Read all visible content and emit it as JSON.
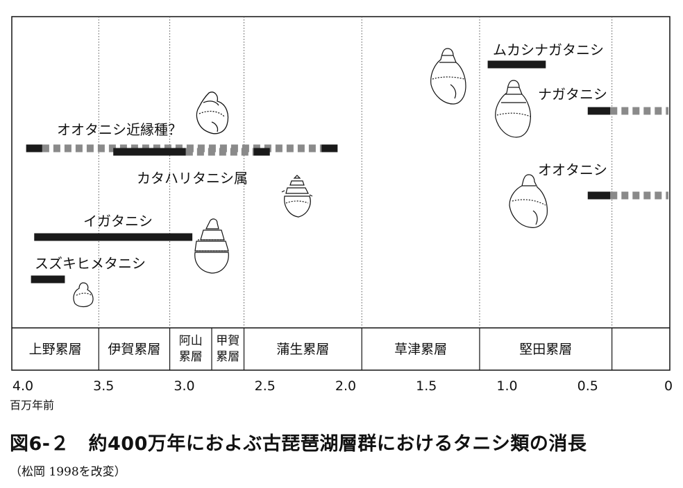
{
  "chart_data": {
    "type": "range-bar",
    "x_axis": {
      "reversed": true,
      "domain": [
        4.0,
        0
      ],
      "ticks": [
        {
          "value": 4.0,
          "label": "4.0"
        },
        {
          "value": 3.5,
          "label": "3.5"
        },
        {
          "value": 3.0,
          "label": "3.0"
        },
        {
          "value": 2.5,
          "label": "2.5"
        },
        {
          "value": 2.0,
          "label": "2.0"
        },
        {
          "value": 1.5,
          "label": "1.5"
        },
        {
          "value": 1.0,
          "label": "1.0"
        },
        {
          "value": 0.5,
          "label": "0.5"
        },
        {
          "value": 0,
          "label": "0"
        }
      ],
      "unit_label": "百万年前"
    },
    "formation_boundaries": [
      3.53,
      3.09,
      2.63,
      1.9,
      1.17,
      0.35
    ],
    "formations": [
      {
        "lines": [
          "上野累層"
        ],
        "from": 4.08,
        "to": 3.53
      },
      {
        "lines": [
          "伊賀累層"
        ],
        "from": 3.53,
        "to": 3.09
      },
      {
        "lines": [
          "阿山",
          "累層"
        ],
        "from": 3.09,
        "to": 2.83
      },
      {
        "lines": [
          "甲賀",
          "累層"
        ],
        "from": 2.83,
        "to": 2.63
      },
      {
        "lines": [
          "蒲生累層"
        ],
        "from": 2.63,
        "to": 1.9
      },
      {
        "lines": [
          "草津累層"
        ],
        "from": 1.9,
        "to": 1.17
      },
      {
        "lines": [
          "堅田累層"
        ],
        "from": 1.17,
        "to": 0.35
      },
      {
        "lines": [
          ""
        ],
        "from": 0.35,
        "to": -0.02
      }
    ],
    "legend": {
      "solid_color": "#1a1a1a",
      "dashed_color": "#8a8a8a"
    },
    "species": [
      {
        "name": "ムカシナガタニシ",
        "segments": [
          {
            "from": 1.12,
            "to": 0.76,
            "style": "solid"
          }
        ]
      },
      {
        "name": "ナガタニシ",
        "segments": [
          {
            "from": 0.5,
            "to": 0.36,
            "style": "solid"
          },
          {
            "from": 0.36,
            "to": 0,
            "style": "dashed"
          }
        ]
      },
      {
        "name": "オオタニシ近縁種？",
        "segments": [
          {
            "from": 3.98,
            "to": 3.88,
            "style": "solid"
          },
          {
            "from": 3.88,
            "to": 2.15,
            "style": "dashed"
          },
          {
            "from": 2.15,
            "to": 2.05,
            "style": "solid"
          }
        ]
      },
      {
        "name": "オオタニシ",
        "segments": [
          {
            "from": 0.5,
            "to": 0.36,
            "style": "solid"
          },
          {
            "from": 0.36,
            "to": 0,
            "style": "dashed"
          }
        ]
      },
      {
        "name": "カタハリタニシ属",
        "segments": [
          {
            "from": 3.44,
            "to": 2.99,
            "style": "solid"
          },
          {
            "from": 2.99,
            "to": 2.57,
            "style": "dashed"
          },
          {
            "from": 2.57,
            "to": 2.47,
            "style": "solid"
          }
        ]
      },
      {
        "name": "イガタニシ",
        "segments": [
          {
            "from": 3.93,
            "to": 2.95,
            "style": "solid"
          }
        ]
      },
      {
        "name": "スズキヒメタニシ",
        "segments": [
          {
            "from": 3.95,
            "to": 3.74,
            "style": "solid"
          }
        ]
      }
    ],
    "shells": [
      {
        "name": "shell-oo-kin",
        "icon": "globose-shell-icon"
      },
      {
        "name": "shell-katahari",
        "icon": "spiny-shell-icon"
      },
      {
        "name": "shell-igatanishi",
        "icon": "stepped-shell-icon"
      },
      {
        "name": "shell-suzukihime",
        "icon": "small-shell-icon"
      },
      {
        "name": "shell-mukashi",
        "icon": "tall-shell-icon"
      },
      {
        "name": "shell-naga",
        "icon": "tall-shell-icon"
      },
      {
        "name": "shell-ootanishi",
        "icon": "globose-shell-icon"
      }
    ]
  },
  "caption": {
    "title": "図6‑２　約400万年におよぶ古琵琶湖層群におけるタニシ類の消長",
    "source": "（松岡 1998を改変）"
  }
}
